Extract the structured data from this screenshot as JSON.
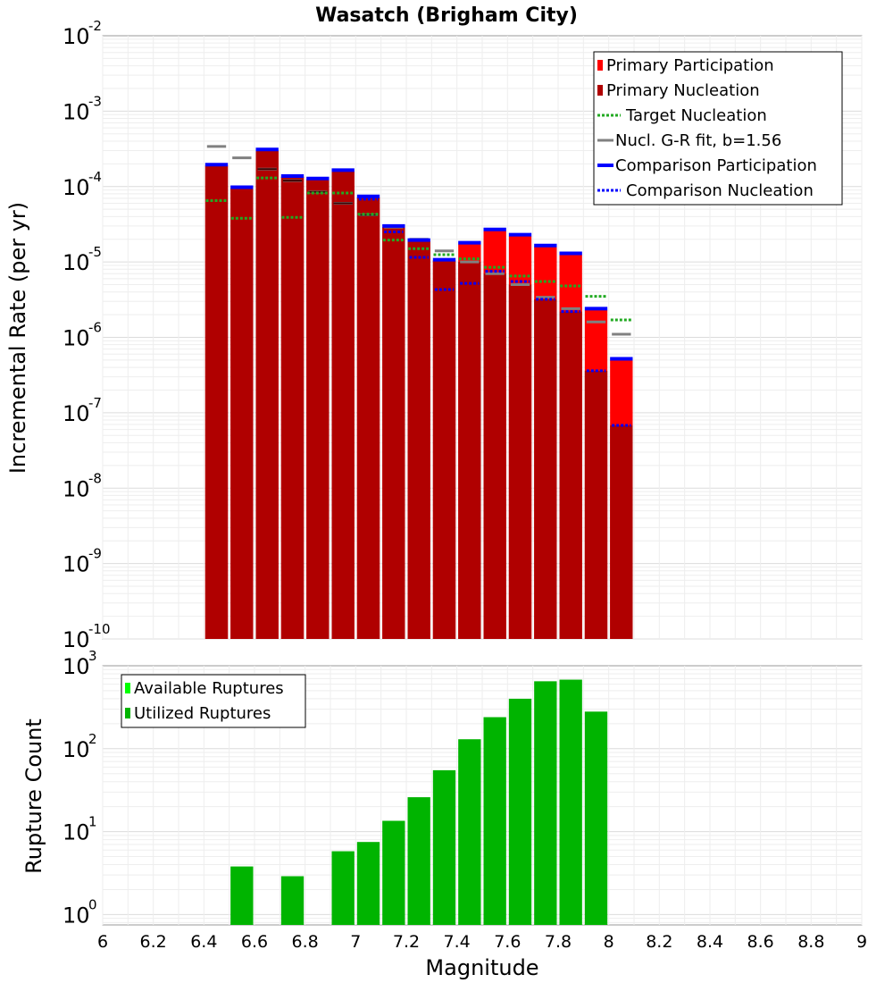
{
  "chart_data": [
    {
      "type": "bar",
      "title": "Wasatch (Brigham City)",
      "ylabel": "Incremental Rate (per yr)",
      "y_scale": "log",
      "ylim": [
        1e-10,
        0.01
      ],
      "xlim": [
        6,
        9
      ],
      "yticks": [
        {
          "base": "10",
          "exp": "-10"
        },
        {
          "base": "10",
          "exp": "-9"
        },
        {
          "base": "10",
          "exp": "-8"
        },
        {
          "base": "10",
          "exp": "-7"
        },
        {
          "base": "10",
          "exp": "-6"
        },
        {
          "base": "10",
          "exp": "-5"
        },
        {
          "base": "10",
          "exp": "-4"
        },
        {
          "base": "10",
          "exp": "-3"
        },
        {
          "base": "10",
          "exp": "-2"
        }
      ],
      "bin_width": 0.1,
      "legend": {
        "placement": "top-right",
        "entries": [
          {
            "label": "Primary Participation",
            "color": "#ff0000",
            "style": "bar"
          },
          {
            "label": "Primary Nucleation",
            "color": "#b00000",
            "style": "bar"
          },
          {
            "label": "Target Nucleation",
            "color": "#22aa22",
            "style": "dotted"
          },
          {
            "label": "Nucl. G-R fit, b=1.56",
            "color": "#808080",
            "style": "solid"
          },
          {
            "label": "Comparison Participation",
            "color": "#0000ff",
            "style": "thick"
          },
          {
            "label": "Comparison Nucleation",
            "color": "#0000ff",
            "style": "dotted"
          }
        ]
      },
      "x": [
        6.45,
        6.55,
        6.65,
        6.75,
        6.85,
        6.95,
        7.05,
        7.15,
        7.25,
        7.35,
        7.45,
        7.55,
        7.65,
        7.75,
        7.85,
        7.95,
        8.05
      ],
      "series": [
        {
          "name": "Primary Participation",
          "color": "#ff0000",
          "values": [
            0.00019,
            9.6e-05,
            0.0003,
            0.000135,
            0.000125,
            0.00016,
            7.2e-05,
            2.9e-05,
            1.9e-05,
            1.05e-05,
            1.75e-05,
            2.6e-05,
            2.2e-05,
            1.6e-05,
            1.25e-05,
            2.3e-06,
            5e-07
          ]
        },
        {
          "name": "Primary Nucleation",
          "color": "#b00000",
          "values": [
            0.00019,
            9.6e-05,
            0.0003,
            0.000135,
            0.000125,
            0.00016,
            7.2e-05,
            2.9e-05,
            1.9e-05,
            1.05e-05,
            1e-05,
            7e-06,
            5e-06,
            3.2e-06,
            2.2e-06,
            3.6e-07,
            6.8e-08
          ]
        },
        {
          "name": "Target Nucleation",
          "color": "#22aa22",
          "values": [
            6.5e-05,
            3.8e-05,
            0.00013,
            3.9e-05,
            8.2e-05,
            8.2e-05,
            4.3e-05,
            1.95e-05,
            1.5e-05,
            1.25e-05,
            1.1e-05,
            8.5e-06,
            6.5e-06,
            5.5e-06,
            4.8e-06,
            3.5e-06,
            1.7e-06
          ]
        },
        {
          "name": "Nucl. G-R fit, b=1.56",
          "color": "#808080",
          "values": [
            0.00034,
            0.00024,
            0.00017,
            0.00012,
            8.5e-05,
            6e-05,
            4.2e-05,
            2.9e-05,
            2e-05,
            1.4e-05,
            1e-05,
            7e-06,
            5e-06,
            3.4e-06,
            2.4e-06,
            1.6e-06,
            1.1e-06
          ]
        },
        {
          "name": "Comparison Participation",
          "color": "#0000ff",
          "values": [
            0.000195,
            9.8e-05,
            0.00031,
            0.000138,
            0.000128,
            0.000165,
            7.4e-05,
            3e-05,
            1.95e-05,
            1.07e-05,
            1.8e-05,
            2.7e-05,
            2.3e-05,
            1.65e-05,
            1.3e-05,
            2.4e-06,
            5.2e-07
          ]
        },
        {
          "name": "Comparison Nucleation",
          "color": "#0000ff",
          "values": [
            null,
            null,
            null,
            null,
            null,
            null,
            6.8e-05,
            2.5e-05,
            1.15e-05,
            4.3e-06,
            5.2e-06,
            7.5e-06,
            5.5e-06,
            3.2e-06,
            2.2e-06,
            3.6e-07,
            6.8e-08
          ]
        }
      ]
    },
    {
      "type": "bar",
      "xlabel": "Magnitude",
      "ylabel": "Rupture Count",
      "y_scale": "log",
      "ylim": [
        0.75,
        1000
      ],
      "xlim": [
        6,
        9
      ],
      "xticks": [
        "6",
        "6.2",
        "6.4",
        "6.6",
        "6.8",
        "7",
        "7.2",
        "7.4",
        "7.6",
        "7.8",
        "8",
        "8.2",
        "8.4",
        "8.6",
        "8.8",
        "9"
      ],
      "yticks": [
        {
          "base": "10",
          "exp": "0"
        },
        {
          "base": "10",
          "exp": "1"
        },
        {
          "base": "10",
          "exp": "2"
        },
        {
          "base": "10",
          "exp": "3"
        }
      ],
      "bin_width": 0.1,
      "legend": {
        "placement": "top-left",
        "entries": [
          {
            "label": "Available Ruptures",
            "color": "#00ff00"
          },
          {
            "label": "Utilized Ruptures",
            "color": "#00b400"
          }
        ]
      },
      "x": [
        6.55,
        6.75,
        6.95,
        7.05,
        7.15,
        7.25,
        7.35,
        7.45,
        7.55,
        7.65,
        7.75,
        7.85,
        7.95
      ],
      "series": [
        {
          "name": "Utilized Ruptures",
          "color": "#00b400",
          "values": [
            3.8,
            2.9,
            5.8,
            7.5,
            13.5,
            26,
            55,
            130,
            240,
            400,
            650,
            680,
            280
          ]
        }
      ]
    }
  ]
}
